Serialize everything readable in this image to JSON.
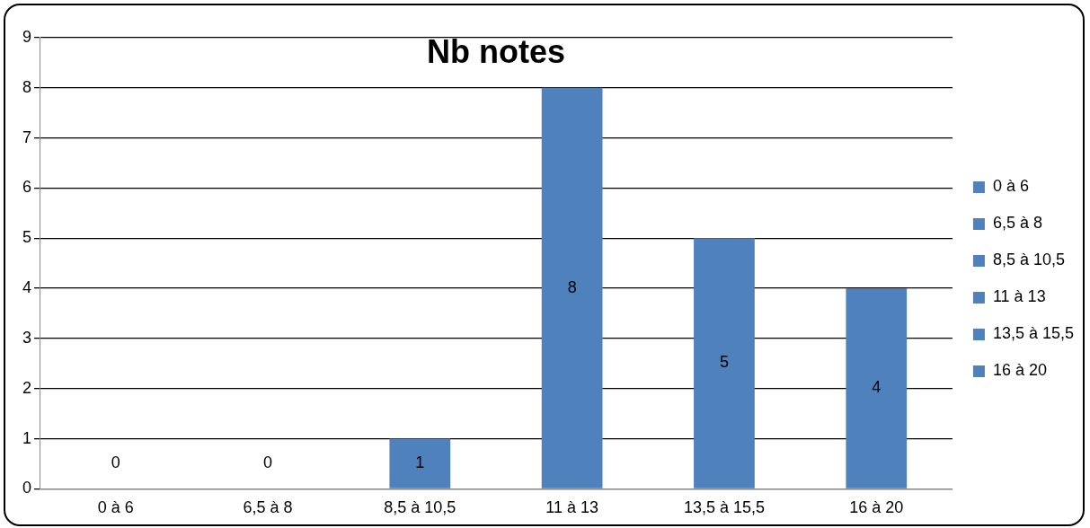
{
  "chart_data": {
    "type": "bar",
    "title": "Nb notes",
    "categories": [
      "0 à 6",
      "6,5 à 8",
      "8,5 à 10,5",
      "11 à 13",
      "13,5 à 15,5",
      "16 à 20"
    ],
    "series": [
      {
        "name": "0 à 6",
        "color": "#4f81bd",
        "values": [
          0,
          null,
          null,
          null,
          null,
          null
        ]
      },
      {
        "name": "6,5 à 8",
        "color": "#4f81bd",
        "values": [
          null,
          0,
          null,
          null,
          null,
          null
        ]
      },
      {
        "name": "8,5 à 10,5",
        "color": "#4f81bd",
        "values": [
          null,
          null,
          1,
          null,
          null,
          null
        ]
      },
      {
        "name": "11 à 13",
        "color": "#4f81bd",
        "values": [
          null,
          null,
          null,
          8,
          null,
          null
        ]
      },
      {
        "name": "13,5 à 15,5",
        "color": "#4f81bd",
        "values": [
          null,
          null,
          null,
          null,
          5,
          null
        ]
      },
      {
        "name": "16 à 20",
        "color": "#4f81bd",
        "values": [
          null,
          null,
          null,
          null,
          null,
          4
        ]
      }
    ],
    "ylim": [
      0,
      9
    ],
    "yticks": [
      0,
      1,
      2,
      3,
      4,
      5,
      6,
      7,
      8,
      9
    ],
    "grid": "y",
    "legend": "right",
    "data_labels": true
  }
}
